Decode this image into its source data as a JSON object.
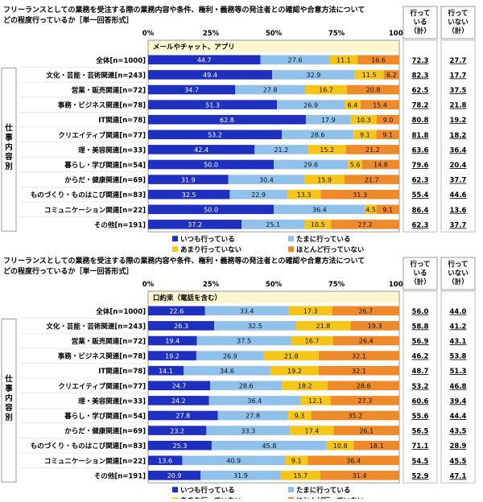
{
  "chart_data": [
    {
      "type": "bar",
      "orientation": "horizontal",
      "stacked": true,
      "title": "フリーランスとしての業務を受注する際の業務内容や条件、権利・義務等の発注者との確認や合意方法について",
      "subtitle": "どの程度行っているか［単一回答形式］",
      "section_label": "メールやチャット、アプリ",
      "group_label": "仕事内容別",
      "x_ticks": [
        "0%",
        "25%",
        "50%",
        "75%",
        "100%"
      ],
      "xlim": [
        0,
        100
      ],
      "summary_headers": [
        "行っている（計）",
        "行っていない（計）"
      ],
      "categories": [
        "全体[n=1000]",
        "文化・芸能・芸術関連[n=243]",
        "営業・販売関連[n=72]",
        "事務・ビジネス関連[n=78]",
        "IT関連[n=78]",
        "クリエイティブ関連[n=77]",
        "理・美容関連[n=33]",
        "暮らし・学び関連[n=54]",
        "からだ・健康関連[n=69]",
        "ものづくり・ものはこび関連[n=83]",
        "コミュニケーション関連[n=22]",
        "その他[n=191]"
      ],
      "series": [
        {
          "name": "いつも行っている",
          "color": "#1f2fbf",
          "values": [
            44.7,
            49.4,
            34.7,
            51.3,
            62.8,
            53.2,
            42.4,
            50.0,
            31.9,
            32.5,
            50.0,
            37.2
          ]
        },
        {
          "name": "たまに行っている",
          "color": "#8fc1ea",
          "values": [
            27.6,
            32.9,
            27.8,
            26.9,
            17.9,
            28.6,
            21.2,
            29.6,
            30.4,
            22.9,
            36.4,
            25.1
          ]
        },
        {
          "name": "あまり行っていない",
          "color": "#f5c518",
          "values": [
            11.1,
            11.5,
            16.7,
            6.4,
            10.3,
            9.1,
            15.2,
            5.6,
            15.9,
            13.3,
            4.5,
            10.5
          ]
        },
        {
          "name": "ほとんど行っていない",
          "color": "#ee8a2a",
          "values": [
            16.6,
            6.2,
            20.8,
            15.4,
            9.0,
            9.1,
            21.2,
            14.8,
            21.7,
            31.3,
            9.1,
            27.2
          ]
        }
      ],
      "summary_doing": [
        "72.3",
        "82.3",
        "62.5",
        "78.2",
        "80.8",
        "81.8",
        "63.6",
        "79.6",
        "62.3",
        "55.4",
        "86.4",
        "62.3"
      ],
      "summary_not_doing": [
        "27.7",
        "17.7",
        "37.5",
        "21.8",
        "19.2",
        "18.2",
        "36.4",
        "20.4",
        "37.7",
        "44.6",
        "13.6",
        "37.7"
      ]
    },
    {
      "type": "bar",
      "orientation": "horizontal",
      "stacked": true,
      "title": "フリーランスとしての業務を受注する際の業務内容や条件、権利・義務等の発注者との確認や合意方法について",
      "subtitle": "どの程度行っているか［単一回答形式］",
      "section_label": "口約束（電話を含む）",
      "group_label": "仕事内容別",
      "x_ticks": [
        "0%",
        "25%",
        "50%",
        "75%",
        "100%"
      ],
      "xlim": [
        0,
        100
      ],
      "summary_headers": [
        "行っている（計）",
        "行っていない（計）"
      ],
      "categories": [
        "全体[n=1000]",
        "文化・芸能・芸術関連[n=243]",
        "営業・販売関連[n=72]",
        "事務・ビジネス関連[n=78]",
        "IT関連[n=78]",
        "クリエイティブ関連[n=77]",
        "理・美容関連[n=33]",
        "暮らし・学び関連[n=54]",
        "からだ・健康関連[n=69]",
        "ものづくり・ものはこび関連[n=83]",
        "コミュニケーション関連[n=22]",
        "その他[n=191]"
      ],
      "series": [
        {
          "name": "いつも行っている",
          "color": "#1f2fbf",
          "values": [
            22.6,
            26.3,
            19.4,
            19.2,
            14.1,
            24.7,
            24.2,
            27.8,
            23.2,
            25.3,
            13.6,
            20.9
          ]
        },
        {
          "name": "たまに行っている",
          "color": "#8fc1ea",
          "values": [
            33.4,
            32.5,
            37.5,
            26.9,
            34.6,
            28.6,
            36.4,
            27.8,
            33.3,
            45.8,
            40.9,
            31.9
          ]
        },
        {
          "name": "あまり行っていない",
          "color": "#f5c518",
          "values": [
            17.3,
            21.8,
            16.7,
            21.8,
            19.2,
            18.2,
            12.1,
            9.3,
            17.4,
            10.8,
            9.1,
            15.7
          ]
        },
        {
          "name": "ほとんど行っていない",
          "color": "#ee8a2a",
          "values": [
            26.7,
            19.3,
            26.4,
            32.1,
            32.1,
            28.6,
            27.3,
            35.2,
            26.1,
            18.1,
            36.4,
            31.4
          ]
        }
      ],
      "summary_doing": [
        "56.0",
        "58.8",
        "56.9",
        "46.2",
        "48.7",
        "53.2",
        "60.6",
        "55.6",
        "56.5",
        "71.1",
        "54.5",
        "52.9"
      ],
      "summary_not_doing": [
        "44.0",
        "41.2",
        "43.1",
        "53.8",
        "51.3",
        "46.8",
        "39.4",
        "44.4",
        "43.5",
        "28.9",
        "45.5",
        "47.1"
      ]
    }
  ]
}
